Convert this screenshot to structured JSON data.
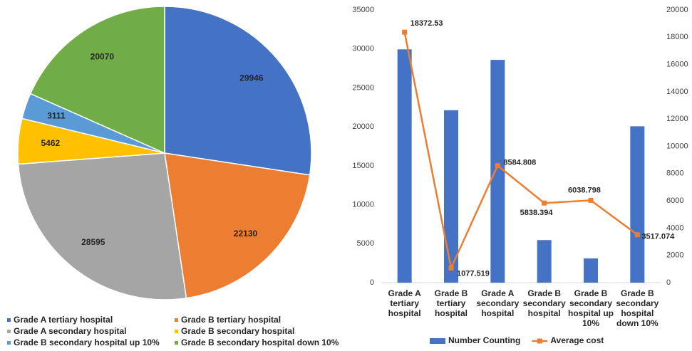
{
  "chart_data": [
    {
      "type": "pie",
      "categories": [
        "Grade A tertiary hospital",
        "Grade B tertiary hospital",
        "Grade A secondary hospital",
        "Grade B secondary hospital",
        "Grade B secondary hospital up 10%",
        "Grade B secondary hospital down 10%"
      ],
      "values": [
        29946,
        22130,
        28595,
        5462,
        3111,
        20070
      ],
      "colors": [
        "#4472c4",
        "#ed7d31",
        "#a5a5a5",
        "#ffc000",
        "#5b9bd5",
        "#70ad47"
      ]
    },
    {
      "type": "bar_line",
      "categories": [
        "Grade A tertiary hospital",
        "Grade B tertiary hospital",
        "Grade A secondary hospital",
        "Grade B secondary hospital",
        "Grade B secondary hospital up 10%",
        "Grade B secondary hospital down 10%"
      ],
      "series": [
        {
          "name": "Number Counting",
          "type": "bar",
          "color": "#4472c4",
          "values": [
            29946,
            22130,
            28595,
            5462,
            3111,
            20070
          ]
        },
        {
          "name": "Average cost",
          "type": "line",
          "axis": "y2",
          "color": "#ed7d31",
          "values": [
            18372.53,
            1077.519,
            8584.808,
            5838.394,
            6038.798,
            3517.074
          ]
        }
      ],
      "ylim": [
        0,
        35000
      ],
      "yticks": [
        0,
        5000,
        10000,
        15000,
        20000,
        25000,
        30000,
        35000
      ],
      "y2lim": [
        0,
        20000
      ],
      "y2ticks": [
        0,
        2000,
        4000,
        6000,
        8000,
        10000,
        12000,
        14000,
        16000,
        18000,
        20000
      ]
    }
  ]
}
